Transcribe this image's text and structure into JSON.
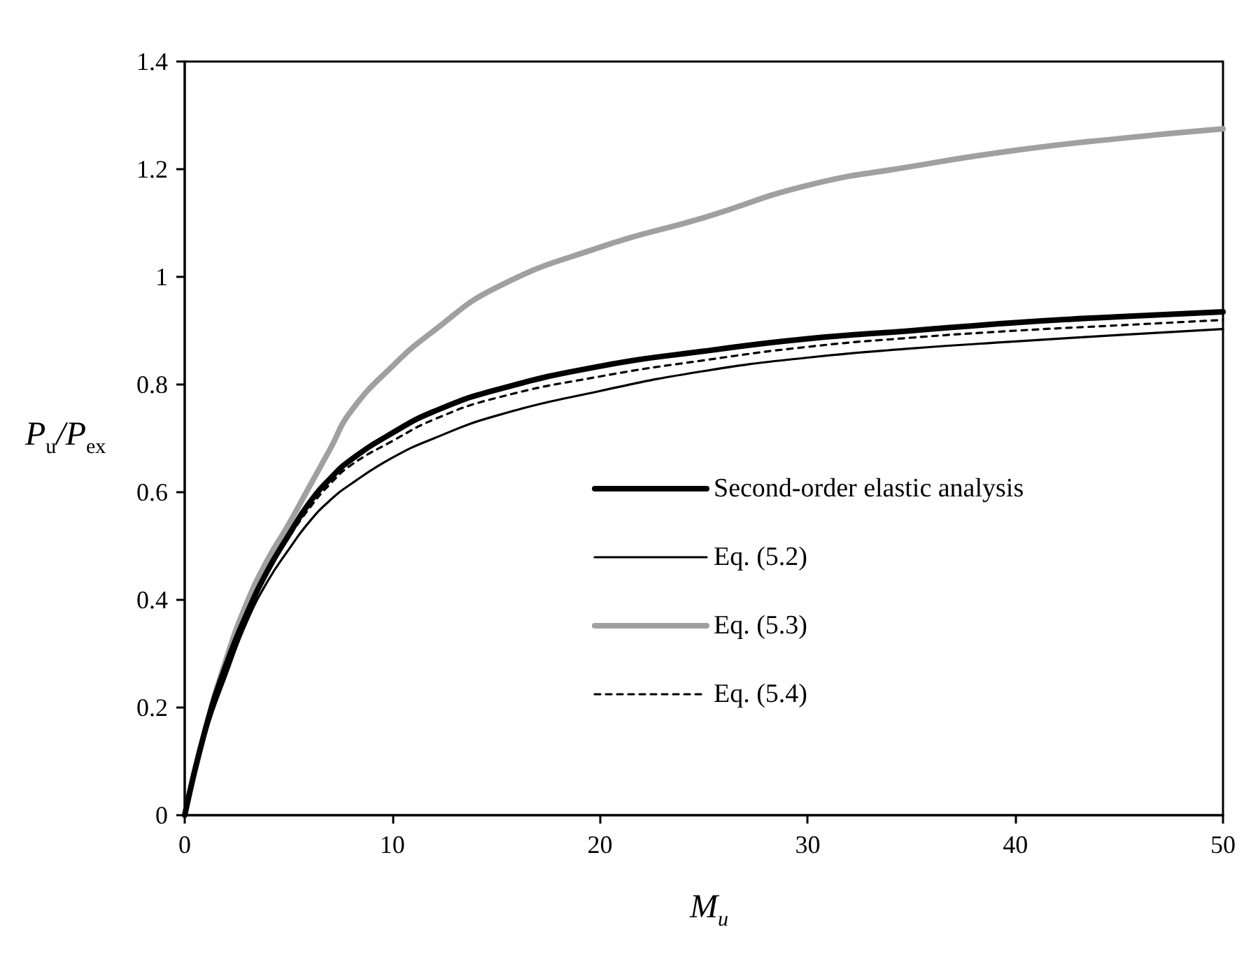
{
  "chart_data": {
    "type": "line",
    "xlabel": "M$_{u}$",
    "ylabel": "P$_{u}$/P$_{ex}$",
    "x": [
      0,
      1,
      2,
      3,
      4,
      5,
      6,
      7,
      8,
      10,
      12,
      15,
      20,
      25,
      30,
      35,
      40,
      45,
      50
    ],
    "series": [
      {
        "name": "Second-order elastic analysis",
        "color": "#000000",
        "line_style": "solid",
        "values": [
          0,
          0.16,
          0.28,
          0.375,
          0.455,
          0.52,
          0.58,
          0.625,
          0.66,
          0.71,
          0.75,
          0.79,
          0.834,
          0.862,
          0.885,
          0.9,
          0.915,
          0.926,
          0.935
        ]
      },
      {
        "name": "Eq. (5.2)",
        "color": "#000000",
        "line_style": "solid",
        "values": [
          0,
          0.15,
          0.26,
          0.36,
          0.435,
          0.493,
          0.545,
          0.585,
          0.615,
          0.664,
          0.7,
          0.742,
          0.788,
          0.825,
          0.85,
          0.867,
          0.88,
          0.892,
          0.903
        ]
      },
      {
        "name": "Eq. (5.3)",
        "color": "#a0a0a0",
        "line_style": "solid",
        "values": [
          0,
          0.16,
          0.29,
          0.395,
          0.475,
          0.54,
          0.61,
          0.68,
          0.75,
          0.834,
          0.9,
          0.98,
          1.055,
          1.11,
          1.17,
          1.205,
          1.235,
          1.257,
          1.275
        ]
      },
      {
        "name": "Eq. (5.4)",
        "color": "#000000",
        "line_style": "dashed",
        "values": [
          0,
          0.16,
          0.28,
          0.38,
          0.455,
          0.515,
          0.57,
          0.615,
          0.65,
          0.695,
          0.735,
          0.775,
          0.815,
          0.845,
          0.87,
          0.887,
          0.9,
          0.91,
          0.92
        ]
      }
    ],
    "xlim": [
      0,
      50
    ],
    "xticks": [
      0,
      10,
      20,
      30,
      40,
      50
    ],
    "ylim": [
      0,
      1.4
    ],
    "yticks": [
      0,
      0.2,
      0.4,
      0.6,
      0.8,
      1,
      1.2,
      1.4
    ],
    "grid": false,
    "legend": "right",
    "marker": "none"
  }
}
